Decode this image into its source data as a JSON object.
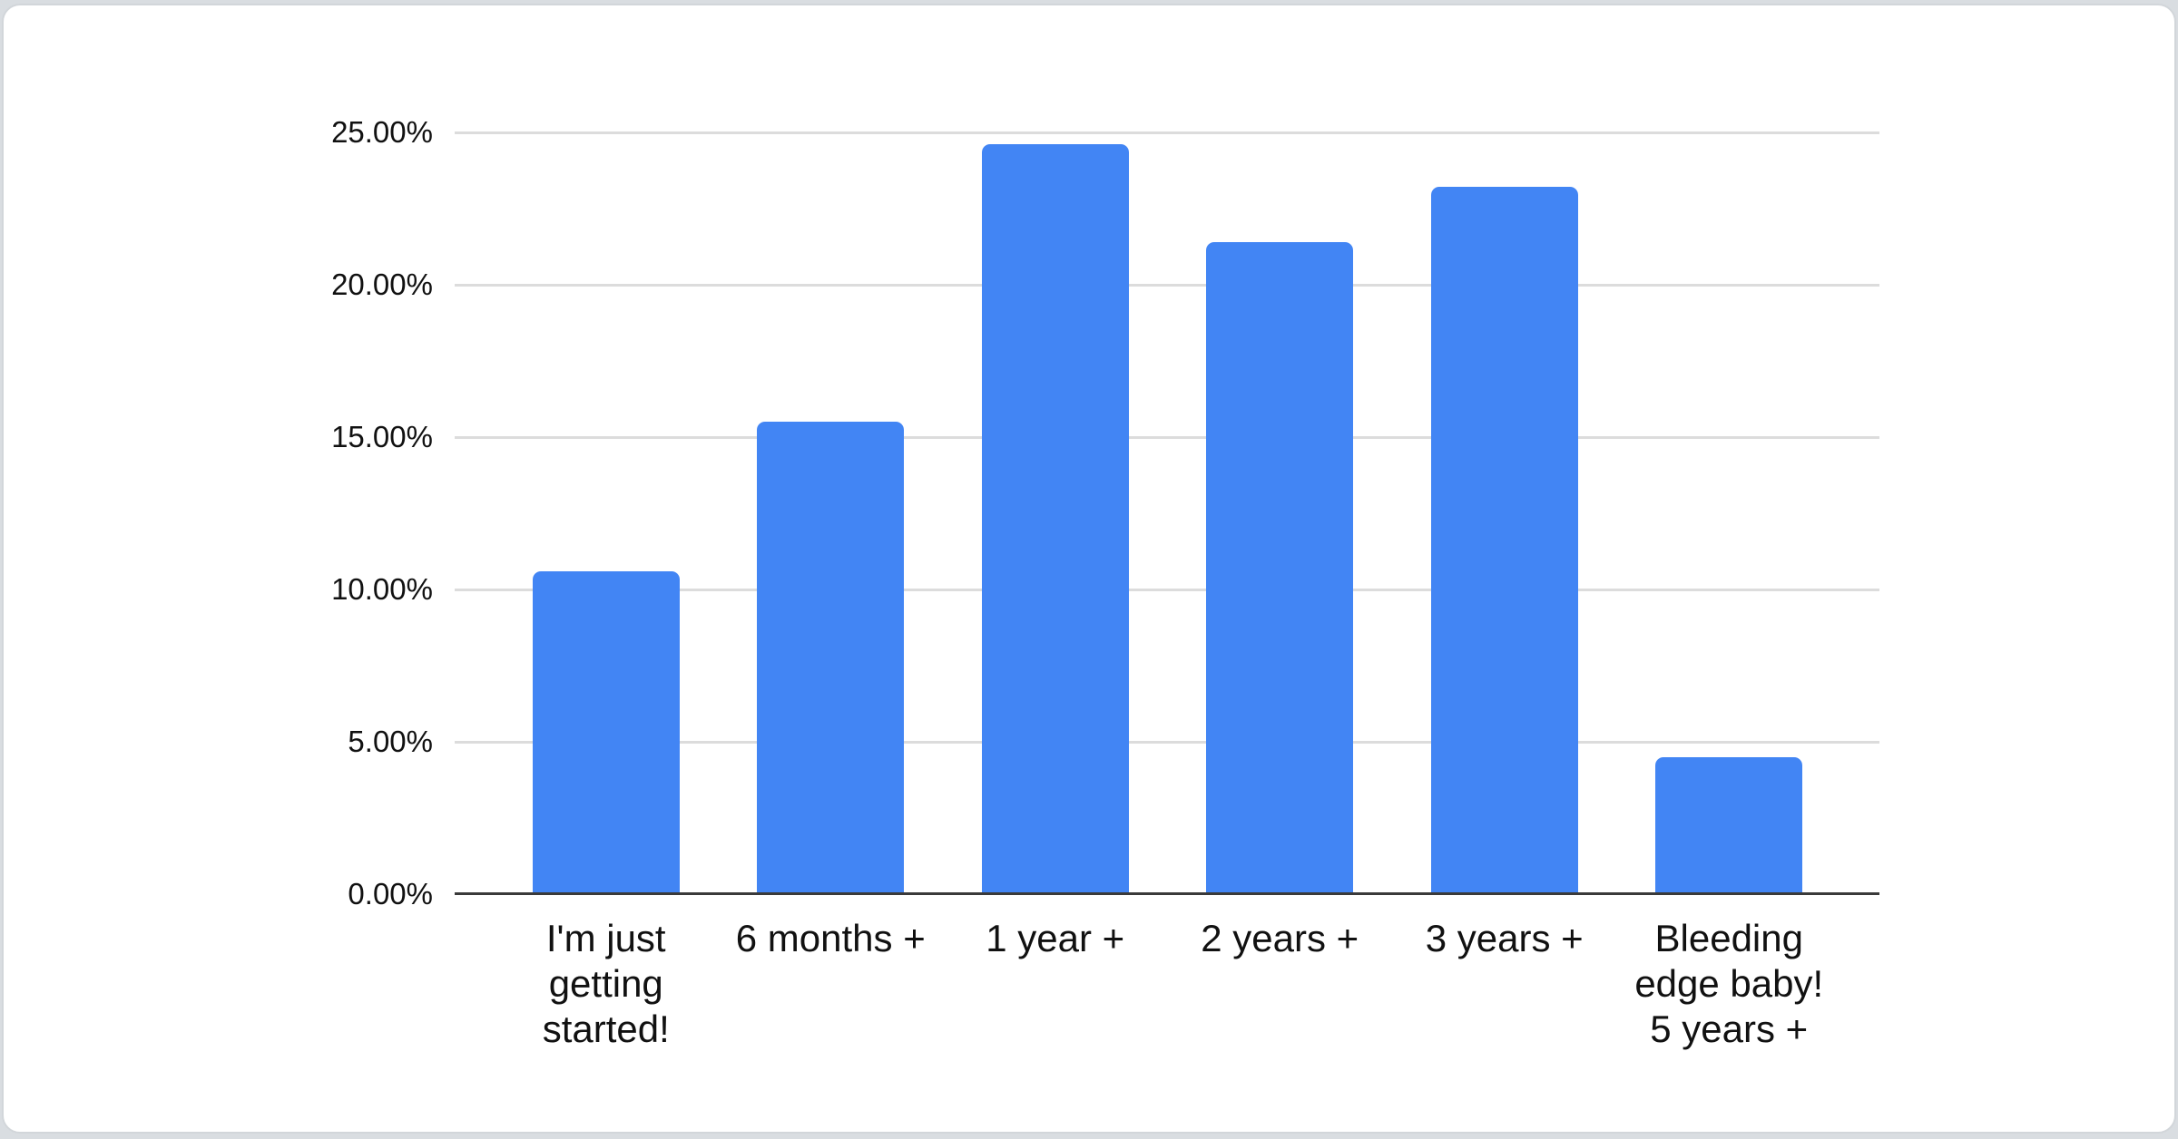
{
  "page": {
    "background_color": "#d9dde1",
    "card_background": "#ffffff",
    "card_border_color": "#d2d6da",
    "text_color": "#111111",
    "gridline_color": "#dcdcdc",
    "axis_line_color": "#3a3a3a"
  },
  "chart_data": {
    "type": "bar",
    "title": "",
    "xlabel": "",
    "ylabel": "",
    "categories": [
      "I'm just getting started!",
      "6 months +",
      "1 year +",
      "2 years +",
      "3 years +",
      "Bleeding edge baby! 5 years +"
    ],
    "categories_display": [
      "I'm just\ngetting\nstarted!",
      "6 months +",
      "1 year +",
      "2 years +",
      "3 years +",
      "Bleeding\nedge baby!\n5 years +"
    ],
    "values": [
      10.6,
      15.5,
      24.6,
      21.4,
      23.2,
      4.5
    ],
    "value_unit": "%",
    "ylim": [
      0,
      25
    ],
    "y_ticks": [
      {
        "value": 25,
        "label": "25.00%"
      },
      {
        "value": 20,
        "label": "20.00%"
      },
      {
        "value": 15,
        "label": "15.00%"
      },
      {
        "value": 10,
        "label": "10.00%"
      },
      {
        "value": 5,
        "label": "5.00%"
      },
      {
        "value": 0,
        "label": "0.00%"
      }
    ],
    "grid": true,
    "legend": "none",
    "bar_color": "#4285f4"
  }
}
